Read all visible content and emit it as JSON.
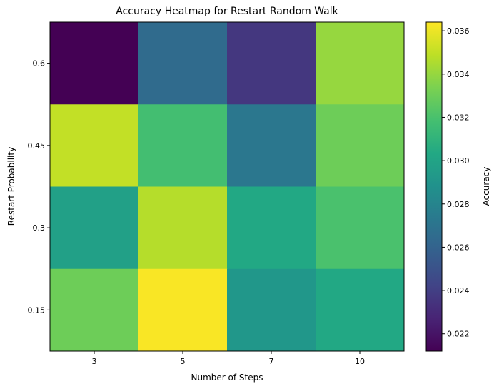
{
  "chart_data": {
    "type": "heatmap",
    "title": "Accuracy Heatmap for Restart Random Walk",
    "xlabel": "Number of Steps",
    "ylabel": "Restart Probability",
    "x_categories": [
      "3",
      "5",
      "7",
      "10"
    ],
    "y_categories_top_to_bottom": [
      "0.6",
      "0.45",
      "0.3",
      "0.15"
    ],
    "values_top_to_bottom": [
      [
        0.0212,
        0.0265,
        0.0236,
        0.034
      ],
      [
        0.035,
        0.0318,
        0.0272,
        0.033
      ],
      [
        0.0298,
        0.0347,
        0.0303,
        0.032
      ],
      [
        0.033,
        0.0363,
        0.0292,
        0.0303
      ]
    ],
    "colormap": "viridis",
    "colorbar": {
      "label": "Accuracy",
      "range": [
        0.0212,
        0.0364
      ],
      "ticks": [
        0.022,
        0.024,
        0.026,
        0.028,
        0.03,
        0.032,
        0.034,
        0.036
      ],
      "tick_labels": [
        "0.022",
        "0.024",
        "0.026",
        "0.028",
        "0.030",
        "0.032",
        "0.034",
        "0.036"
      ]
    },
    "grid": false,
    "legend": "none"
  }
}
